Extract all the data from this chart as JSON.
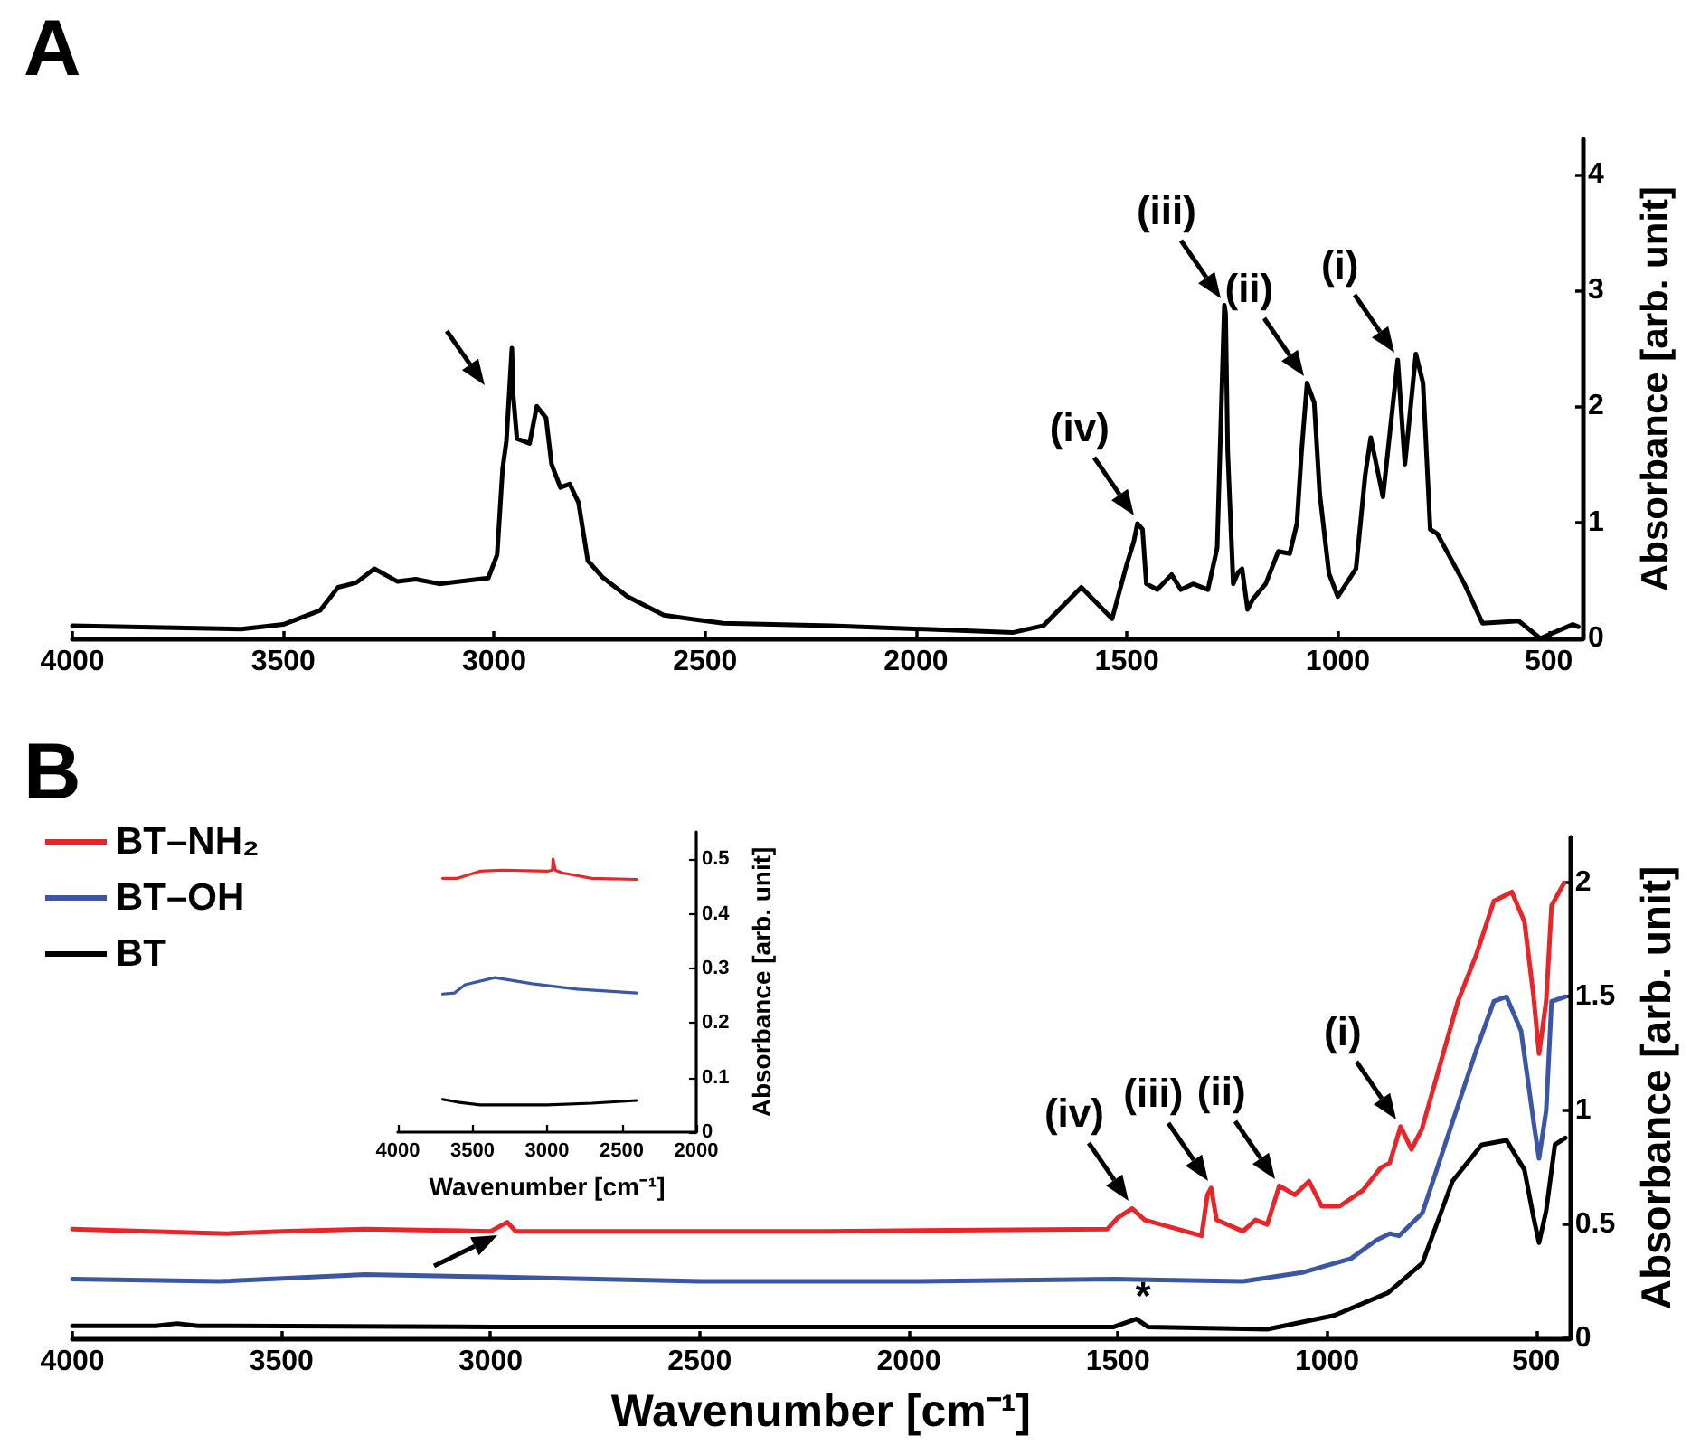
{
  "chart_data": [
    {
      "type": "line",
      "title": "A",
      "ylabel": "Absorbance [arb. unit]",
      "xlim": [
        4000,
        420
      ],
      "xticks": [
        4000,
        3500,
        3000,
        2500,
        2000,
        1500,
        1000,
        500
      ],
      "ylim": [
        0,
        4.3
      ],
      "yticks": [
        0,
        1,
        2,
        3,
        4
      ],
      "series": [
        {
          "color": "#000000",
          "x": [
            4000,
            3600,
            3500,
            3413,
            3370,
            3327,
            3284,
            3229,
            3186,
            3130,
            3014,
            2993,
            2980,
            2971,
            2958,
            2955,
            2946,
            2916,
            2899,
            2877,
            2864,
            2843,
            2821,
            2800,
            2778,
            2744,
            2684,
            2598,
            2457,
            2200,
            1771,
            1698,
            1608,
            1535,
            1501,
            1484,
            1475,
            1463,
            1454,
            1428,
            1394,
            1372,
            1343,
            1308,
            1286,
            1269,
            1266,
            1261,
            1248,
            1236,
            1227,
            1214,
            1201,
            1171,
            1141,
            1114,
            1097,
            1086,
            1073,
            1056,
            1043,
            1021,
            1000,
            957,
            935,
            922,
            893,
            858,
            841,
            815,
            798,
            781,
            764,
            700,
            657,
            571,
            520,
            443,
            430
          ],
          "values": [
            0.11,
            0.08,
            0.12,
            0.24,
            0.44,
            0.48,
            0.6,
            0.49,
            0.51,
            0.47,
            0.52,
            0.72,
            1.46,
            1.7,
            2.5,
            2.1,
            1.72,
            1.68,
            2.0,
            1.9,
            1.5,
            1.3,
            1.33,
            1.17,
            0.67,
            0.53,
            0.36,
            0.2,
            0.13,
            0.11,
            0.05,
            0.11,
            0.44,
            0.17,
            0.63,
            0.83,
            0.99,
            0.94,
            0.47,
            0.42,
            0.55,
            0.42,
            0.47,
            0.42,
            0.78,
            2.87,
            2.8,
            1.61,
            0.47,
            0.57,
            0.6,
            0.25,
            0.34,
            0.47,
            0.75,
            0.73,
            0.99,
            1.61,
            2.2,
            2.03,
            1.25,
            0.56,
            0.36,
            0.6,
            1.41,
            1.73,
            1.22,
            2.4,
            1.5,
            2.45,
            2.2,
            0.94,
            0.9,
            0.47,
            0.13,
            0.15,
            0.0,
            0.12,
            0.1
          ]
        }
      ],
      "annotations": [
        {
          "text": "(i)",
          "x": 858,
          "y": 2.4
        },
        {
          "text": "(ii)",
          "x": 1073,
          "y": 2.2
        },
        {
          "text": "(iii)",
          "x": 1269,
          "y": 2.87
        },
        {
          "text": "(iv)",
          "x": 1475,
          "y": 0.99
        }
      ]
    },
    {
      "type": "line",
      "title": "B",
      "xlabel": "Wavenumber [cm⁻¹]",
      "ylabel": "Absorbance [arb. unit]",
      "xlim": [
        4000,
        420
      ],
      "xticks": [
        4000,
        3500,
        3000,
        2500,
        2000,
        1500,
        1000,
        500
      ],
      "ylim": [
        0,
        2.2
      ],
      "yticks": [
        0,
        0.5,
        1,
        1.5,
        2
      ],
      "legend": "top left",
      "series": [
        {
          "name": "BT–NH₂",
          "color": "#e8262a",
          "x": [
            4000,
            3630,
            3500,
            3300,
            3000,
            2960,
            2940,
            2700,
            2200,
            1525,
            1500,
            1466,
            1436,
            1300,
            1286,
            1277,
            1264,
            1201,
            1171,
            1143,
            1114,
            1077,
            1043,
            1013,
            970,
            914,
            871,
            850,
            824,
            798,
            773,
            687,
            644,
            601,
            558,
            528,
            506,
            493,
            476,
            463,
            433
          ],
          "values": [
            0.48,
            0.46,
            0.47,
            0.48,
            0.47,
            0.51,
            0.47,
            0.47,
            0.47,
            0.48,
            0.53,
            0.57,
            0.52,
            0.45,
            0.63,
            0.66,
            0.52,
            0.47,
            0.52,
            0.5,
            0.67,
            0.63,
            0.69,
            0.58,
            0.58,
            0.65,
            0.75,
            0.77,
            0.93,
            0.83,
            0.92,
            1.48,
            1.68,
            1.92,
            1.96,
            1.83,
            1.5,
            1.25,
            1.48,
            1.9,
            2.0
          ]
        },
        {
          "name": "BT–OH",
          "color": "#3a56a5",
          "x": [
            4000,
            3650,
            3300,
            3000,
            2500,
            2000,
            1510,
            1201,
            1056,
            943,
            883,
            850,
            828,
            772,
            700,
            644,
            601,
            571,
            536,
            506,
            493,
            476,
            463,
            430
          ],
          "values": [
            0.26,
            0.25,
            0.28,
            0.27,
            0.25,
            0.25,
            0.26,
            0.25,
            0.29,
            0.35,
            0.43,
            0.46,
            0.45,
            0.55,
            0.95,
            1.26,
            1.48,
            1.5,
            1.35,
            0.95,
            0.79,
            1.0,
            1.48,
            1.5
          ]
        },
        {
          "name": "BT",
          "color": "#000000",
          "x": [
            4000,
            3800,
            3750,
            3700,
            3000,
            2000,
            1510,
            1456,
            1428,
            1143,
            983,
            854,
            772,
            700,
            630,
            571,
            528,
            506,
            493,
            476,
            455,
            430
          ],
          "values": [
            0.055,
            0.055,
            0.065,
            0.055,
            0.05,
            0.05,
            0.05,
            0.085,
            0.05,
            0.04,
            0.1,
            0.2,
            0.33,
            0.69,
            0.85,
            0.87,
            0.74,
            0.53,
            0.42,
            0.56,
            0.85,
            0.88
          ]
        }
      ],
      "annotations": [
        {
          "text": "(i)",
          "x": 824,
          "y": 0.93
        },
        {
          "text": "(ii)",
          "x": 1114,
          "y": 0.67
        },
        {
          "text": "(iii)",
          "x": 1277,
          "y": 0.66
        },
        {
          "text": "(iv)",
          "x": 1466,
          "y": 0.57
        },
        {
          "text": "*",
          "x": 1440,
          "y": 0.085
        }
      ]
    },
    {
      "type": "line",
      "xlabel": "Wavenumber [cm⁻¹]",
      "ylabel": "Absorbance [arb. unit]",
      "xlim": [
        4000,
        2000
      ],
      "xticks": [
        4000,
        3500,
        3000,
        2500,
        2000
      ],
      "ylim": [
        0,
        0.55
      ],
      "yticks": [
        0,
        0.1,
        0.2,
        0.3,
        0.4,
        0.5
      ],
      "series": [
        {
          "color": "#e8262a",
          "x": [
            3700,
            3600,
            3450,
            3300,
            3000,
            2965,
            2960,
            2945,
            2900,
            2700,
            2400
          ],
          "values": [
            0.465,
            0.465,
            0.478,
            0.48,
            0.478,
            0.48,
            0.5,
            0.48,
            0.475,
            0.465,
            0.463
          ]
        },
        {
          "color": "#3a56a5",
          "x": [
            3700,
            3620,
            3550,
            3350,
            3100,
            2800,
            2400
          ],
          "values": [
            0.253,
            0.255,
            0.27,
            0.283,
            0.272,
            0.262,
            0.255
          ]
        },
        {
          "color": "#000000",
          "x": [
            3700,
            3600,
            3450,
            3000,
            2700,
            2400
          ],
          "values": [
            0.06,
            0.055,
            0.05,
            0.05,
            0.053,
            0.058
          ]
        }
      ]
    }
  ]
}
